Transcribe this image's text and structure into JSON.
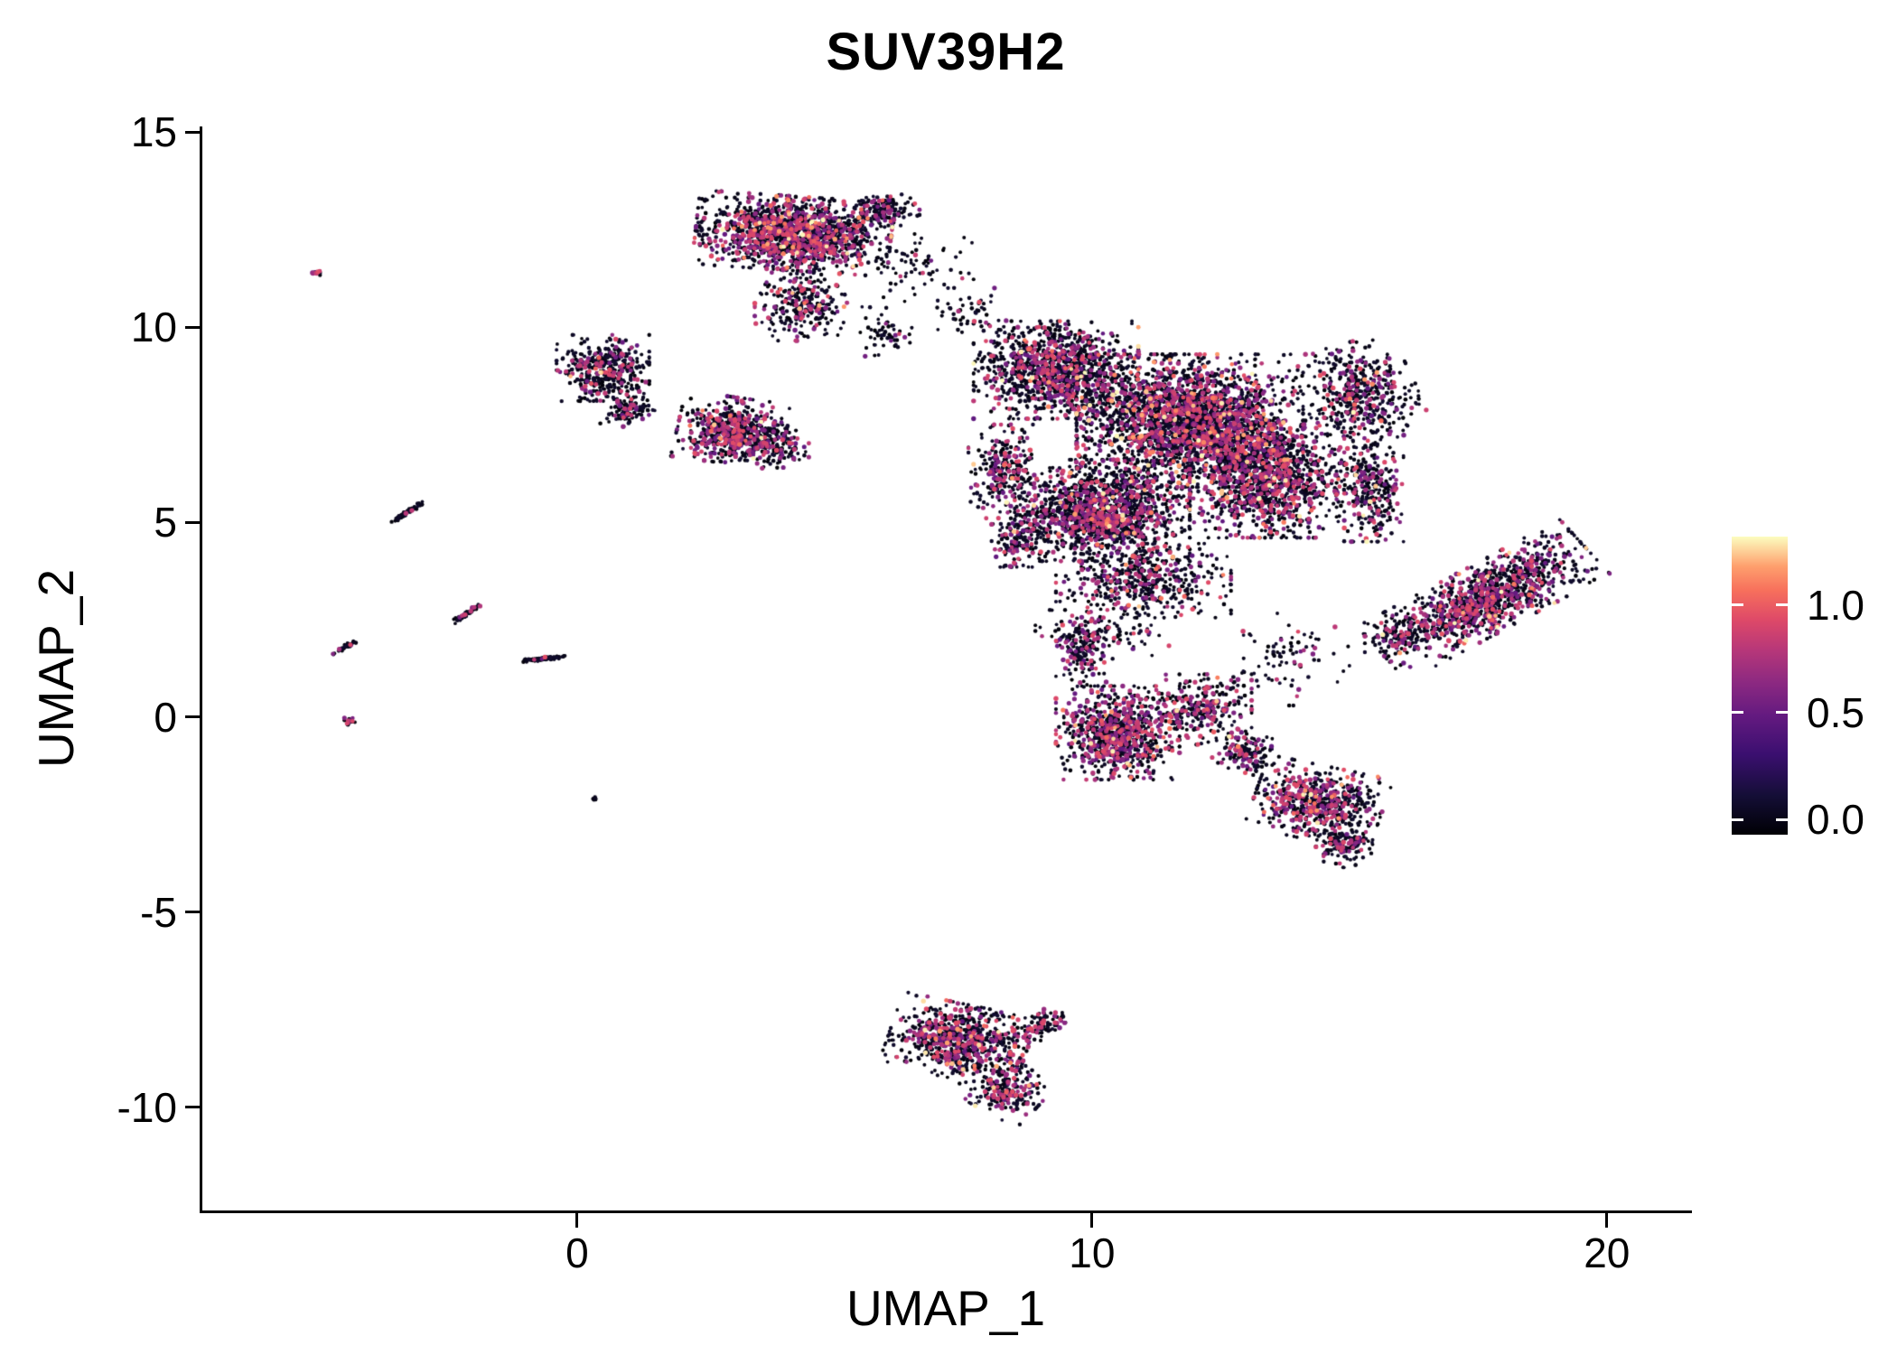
{
  "chart_data": {
    "type": "scatter",
    "title": "SUV39H2",
    "xlabel": "UMAP_1",
    "ylabel": "UMAP_2",
    "xlim": [
      -7.28,
      21.6
    ],
    "ylim": [
      -12.64,
      15.14
    ],
    "grid": false,
    "x_ticks": [
      {
        "v": 0,
        "label": "0"
      },
      {
        "v": 10,
        "label": "10"
      },
      {
        "v": 20,
        "label": "20"
      }
    ],
    "y_ticks": [
      {
        "v": -10,
        "label": "-10"
      },
      {
        "v": -5,
        "label": "-5"
      },
      {
        "v": 0,
        "label": "0"
      },
      {
        "v": 5,
        "label": "5"
      },
      {
        "v": 10,
        "label": "10"
      },
      {
        "v": 15,
        "label": "15"
      }
    ],
    "legend": {
      "position": "right",
      "vmin": -0.07,
      "vmax": 1.32,
      "ticks": [
        {
          "v": 0.0,
          "label": "0.0"
        },
        {
          "v": 0.5,
          "label": "0.5"
        },
        {
          "v": 1.0,
          "label": "1.0"
        }
      ]
    },
    "value_range": [
      0,
      1.3
    ],
    "colormap": {
      "name": "magma",
      "stops": [
        {
          "t": 0.0,
          "c": "#000004"
        },
        {
          "t": 0.13,
          "c": "#140e36"
        },
        {
          "t": 0.27,
          "c": "#3b0f70"
        },
        {
          "t": 0.4,
          "c": "#641a80"
        },
        {
          "t": 0.51,
          "c": "#8c2981"
        },
        {
          "t": 0.62,
          "c": "#b73779"
        },
        {
          "t": 0.72,
          "c": "#de4968"
        },
        {
          "t": 0.82,
          "c": "#f7705c"
        },
        {
          "t": 0.9,
          "c": "#fe9f6d"
        },
        {
          "t": 1.0,
          "c": "#fcfdbf"
        }
      ]
    },
    "clusters": [
      {
        "cx": -5.05,
        "cy": 11.4,
        "rx": 0.1,
        "ry": 0.07,
        "rot": 0,
        "n": 14,
        "pMid": 0.5,
        "pHigh": 0
      },
      {
        "cx": -3.3,
        "cy": 5.25,
        "rx": 0.4,
        "ry": 0.05,
        "rot": 40,
        "n": 70,
        "pMid": 0.04,
        "pHigh": 0
      },
      {
        "cx": -2.15,
        "cy": 2.65,
        "rx": 0.33,
        "ry": 0.06,
        "rot": 40,
        "n": 55,
        "pMid": 0.15,
        "pHigh": 0
      },
      {
        "cx": -4.5,
        "cy": 1.8,
        "rx": 0.3,
        "ry": 0.05,
        "rot": 38,
        "n": 45,
        "pMid": 0.1,
        "pHigh": 0
      },
      {
        "cx": -0.65,
        "cy": 1.5,
        "rx": 0.42,
        "ry": 0.05,
        "rot": 8,
        "n": 90,
        "pMid": 0.02,
        "pHigh": 0
      },
      {
        "cx": -4.4,
        "cy": -0.1,
        "rx": 0.12,
        "ry": 0.09,
        "rot": 0,
        "n": 22,
        "pMid": 0.3,
        "pHigh": 0
      },
      {
        "cx": 0.35,
        "cy": -2.1,
        "rx": 0.07,
        "ry": 0.05,
        "rot": 0,
        "n": 8,
        "pMid": 0,
        "pHigh": 0
      },
      {
        "cx": 4.2,
        "cy": 12.4,
        "rx": 1.9,
        "ry": 0.95,
        "rot": -5,
        "n": 1500,
        "pMid": 0.3,
        "pHigh": 0.035
      },
      {
        "cx": 5.9,
        "cy": 13.0,
        "rx": 0.75,
        "ry": 0.4,
        "rot": 0,
        "n": 160,
        "pMid": 0.15,
        "pHigh": 0.01
      },
      {
        "cx": 4.4,
        "cy": 10.6,
        "rx": 0.95,
        "ry": 0.95,
        "rot": 0,
        "n": 280,
        "pMid": 0.22,
        "pHigh": 0.02
      },
      {
        "cx": 6.6,
        "cy": 11.5,
        "rx": 1.1,
        "ry": 1.0,
        "rot": 0,
        "n": 70,
        "pMid": 0.1,
        "pHigh": 0
      },
      {
        "cx": 7.6,
        "cy": 10.4,
        "rx": 0.8,
        "ry": 0.6,
        "rot": 0,
        "n": 45,
        "pMid": 0.1,
        "pHigh": 0
      },
      {
        "cx": 0.5,
        "cy": 8.95,
        "rx": 0.9,
        "ry": 0.85,
        "rot": 0,
        "n": 430,
        "pMid": 0.18,
        "pHigh": 0.01
      },
      {
        "cx": 1.0,
        "cy": 7.9,
        "rx": 0.55,
        "ry": 0.45,
        "rot": 0,
        "n": 130,
        "pMid": 0.18,
        "pHigh": 0
      },
      {
        "cx": 3.0,
        "cy": 7.35,
        "rx": 1.05,
        "ry": 0.85,
        "rot": -10,
        "n": 650,
        "pMid": 0.34,
        "pHigh": 0.03
      },
      {
        "cx": 4.0,
        "cy": 6.9,
        "rx": 0.5,
        "ry": 0.5,
        "rot": 0,
        "n": 90,
        "pMid": 0.2,
        "pHigh": 0
      },
      {
        "cx": 6.0,
        "cy": 9.9,
        "rx": 0.5,
        "ry": 0.7,
        "rot": 0,
        "n": 55,
        "pMid": 0.15,
        "pHigh": 0
      },
      {
        "cx": 9.3,
        "cy": 8.9,
        "rx": 1.6,
        "ry": 1.25,
        "rot": 0,
        "n": 1250,
        "pMid": 0.22,
        "pHigh": 0.02
      },
      {
        "cx": 11.9,
        "cy": 7.6,
        "rx": 2.2,
        "ry": 1.7,
        "rot": 0,
        "n": 2500,
        "pMid": 0.26,
        "pHigh": 0.03
      },
      {
        "cx": 10.2,
        "cy": 5.3,
        "rx": 1.7,
        "ry": 1.3,
        "rot": 0,
        "n": 1450,
        "pMid": 0.26,
        "pHigh": 0.03
      },
      {
        "cx": 13.4,
        "cy": 6.1,
        "rx": 1.5,
        "ry": 1.5,
        "rot": 0,
        "n": 1250,
        "pMid": 0.28,
        "pHigh": 0.03
      },
      {
        "cx": 15.2,
        "cy": 8.3,
        "rx": 1.1,
        "ry": 1.3,
        "rot": 20,
        "n": 480,
        "pMid": 0.2,
        "pHigh": 0.02
      },
      {
        "cx": 15.4,
        "cy": 5.9,
        "rx": 0.65,
        "ry": 1.4,
        "rot": 0,
        "n": 320,
        "pMid": 0.2,
        "pHigh": 0.02
      },
      {
        "cx": 11.0,
        "cy": 3.5,
        "rx": 1.7,
        "ry": 0.95,
        "rot": 0,
        "n": 480,
        "pMid": 0.25,
        "pHigh": 0.02
      },
      {
        "cx": 8.3,
        "cy": 6.3,
        "rx": 0.7,
        "ry": 1.2,
        "rot": 0,
        "n": 270,
        "pMid": 0.25,
        "pHigh": 0.01
      },
      {
        "cx": 8.6,
        "cy": 4.6,
        "rx": 0.55,
        "ry": 0.75,
        "rot": 0,
        "n": 150,
        "pMid": 0.3,
        "pHigh": 0.01
      },
      {
        "cx": 10.5,
        "cy": -0.4,
        "rx": 1.2,
        "ry": 1.2,
        "rot": 0,
        "n": 820,
        "pMid": 0.38,
        "pHigh": 0.04
      },
      {
        "cx": 12.1,
        "cy": 0.2,
        "rx": 1.0,
        "ry": 0.9,
        "rot": 0,
        "n": 300,
        "pMid": 0.3,
        "pHigh": 0.02
      },
      {
        "cx": 9.8,
        "cy": 1.7,
        "rx": 0.5,
        "ry": 0.9,
        "rot": 0,
        "n": 160,
        "pMid": 0.25,
        "pHigh": 0
      },
      {
        "cx": 13.0,
        "cy": -0.9,
        "rx": 0.6,
        "ry": 0.5,
        "rot": -20,
        "n": 150,
        "pMid": 0.3,
        "pHigh": 0.01
      },
      {
        "cx": 14.4,
        "cy": -2.2,
        "rx": 1.25,
        "ry": 0.95,
        "rot": -15,
        "n": 620,
        "pMid": 0.3,
        "pHigh": 0.03
      },
      {
        "cx": 14.9,
        "cy": -3.3,
        "rx": 0.55,
        "ry": 0.55,
        "rot": 0,
        "n": 130,
        "pMid": 0.2,
        "pHigh": 0
      },
      {
        "cx": 17.6,
        "cy": 3.0,
        "rx": 2.4,
        "ry": 0.85,
        "rot": 35,
        "n": 1150,
        "pMid": 0.3,
        "pHigh": 0.025
      },
      {
        "cx": 15.9,
        "cy": 2.1,
        "rx": 0.6,
        "ry": 0.5,
        "rot": 0,
        "n": 110,
        "pMid": 0.2,
        "pHigh": 0
      },
      {
        "cx": 10.2,
        "cy": 2.2,
        "rx": 1.3,
        "ry": 0.7,
        "rot": 0,
        "n": 110,
        "pMid": 0.2,
        "pHigh": 0
      },
      {
        "cx": 13.8,
        "cy": 1.5,
        "rx": 1.2,
        "ry": 1.2,
        "rot": 0,
        "n": 85,
        "pMid": 0.15,
        "pHigh": 0
      },
      {
        "cx": 7.4,
        "cy": -8.3,
        "rx": 1.35,
        "ry": 0.95,
        "rot": -15,
        "n": 700,
        "pMid": 0.3,
        "pHigh": 0.03
      },
      {
        "cx": 8.3,
        "cy": -9.5,
        "rx": 0.8,
        "ry": 0.7,
        "rot": -35,
        "n": 240,
        "pMid": 0.28,
        "pHigh": 0.02
      },
      {
        "cx": 9.0,
        "cy": -7.9,
        "rx": 0.65,
        "ry": 0.35,
        "rot": 25,
        "n": 120,
        "pMid": 0.25,
        "pHigh": 0
      }
    ]
  }
}
